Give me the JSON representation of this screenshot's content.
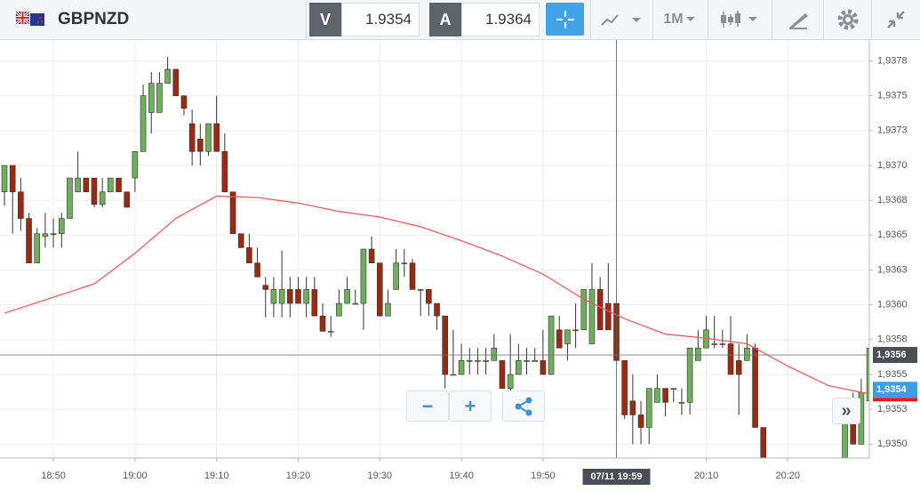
{
  "toolbar": {
    "symbol": "GBPNZD",
    "sell_label": "V",
    "sell_price": 1.9354,
    "buy_label": "A",
    "buy_price": 1.9364,
    "timeframe": "1M"
  },
  "chart_data": {
    "type": "candlestick",
    "x": [
      "18:44",
      "18:45",
      "18:46",
      "18:47",
      "18:48",
      "18:49",
      "18:50",
      "18:51",
      "18:52",
      "18:53",
      "18:54",
      "18:55",
      "18:56",
      "18:57",
      "18:58",
      "18:59",
      "19:00",
      "19:01",
      "19:02",
      "19:03",
      "19:04",
      "19:05",
      "19:06",
      "19:07",
      "19:08",
      "19:09",
      "19:10",
      "19:11",
      "19:12",
      "19:13",
      "19:14",
      "19:15",
      "19:16",
      "19:17",
      "19:18",
      "19:19",
      "19:20",
      "19:21",
      "19:22",
      "19:23",
      "19:24",
      "19:25",
      "19:26",
      "19:27",
      "19:28",
      "19:29",
      "19:30",
      "19:31",
      "19:32",
      "19:33",
      "19:34",
      "19:35",
      "19:36",
      "19:37",
      "19:38",
      "19:39",
      "19:40",
      "19:41",
      "19:42",
      "19:43",
      "19:44",
      "19:45",
      "19:46",
      "19:47",
      "19:48",
      "19:49",
      "19:50",
      "19:51",
      "19:52",
      "19:53",
      "19:54",
      "19:55",
      "19:56",
      "19:57",
      "19:58",
      "19:59",
      "20:00",
      "20:01",
      "20:02",
      "20:03",
      "20:04",
      "20:05",
      "20:06",
      "20:07",
      "20:08",
      "20:09",
      "20:10",
      "20:11",
      "20:12",
      "20:13",
      "20:14",
      "20:15",
      "20:16",
      "20:17",
      "20:27",
      "20:28",
      "20:29",
      "20:30"
    ],
    "open": [
      1.93681,
      1.937,
      1.93681,
      1.93662,
      1.9363,
      1.93649,
      1.93651,
      1.93651,
      1.93662,
      1.93681,
      1.93691,
      1.93691,
      1.93672,
      1.93681,
      1.93691,
      1.93681,
      1.93691,
      1.9371,
      1.93738,
      1.93738,
      1.93759,
      1.93769,
      1.9375,
      1.9373,
      1.93719,
      1.9371,
      1.9373,
      1.9371,
      1.93681,
      1.93651,
      1.93641,
      1.9363,
      1.93614,
      1.93601,
      1.93601,
      1.93611,
      1.93611,
      1.93601,
      1.93611,
      1.93592,
      1.93581,
      1.93592,
      1.93601,
      1.93601,
      1.93601,
      1.9364,
      1.9363,
      1.93592,
      1.93611,
      1.9363,
      1.9363,
      1.93611,
      1.93611,
      1.93601,
      1.93592,
      1.9355,
      1.9355,
      1.9356,
      1.9356,
      1.9356,
      1.9356,
      1.9356,
      1.9354,
      1.9355,
      1.9356,
      1.9356,
      1.9356,
      1.9355,
      1.93582,
      1.93572,
      1.93582,
      1.93582,
      1.93572,
      1.93611,
      1.93601,
      1.93601,
      1.9356,
      1.93531,
      1.93521,
      1.93512,
      1.9353,
      1.9354,
      1.9354,
      1.9353,
      1.9353,
      1.9356,
      1.93569,
      1.93572,
      1.93572,
      1.93572,
      1.9356,
      1.9356,
      1.93569,
      1.93512,
      1.93489,
      1.93521,
      1.935,
      1.93531
    ],
    "high": [
      1.937,
      1.937,
      1.93691,
      1.93666,
      1.93655,
      1.93666,
      1.93662,
      1.93666,
      1.93691,
      1.9371,
      1.93691,
      1.93691,
      1.93691,
      1.93691,
      1.93691,
      1.93681,
      1.9371,
      1.93758,
      1.93767,
      1.93767,
      1.93778,
      1.93769,
      1.9375,
      1.9374,
      1.9373,
      1.9373,
      1.9375,
      1.93723,
      1.93681,
      1.93651,
      1.93651,
      1.93641,
      1.9362,
      1.9362,
      1.93639,
      1.9362,
      1.9362,
      1.9362,
      1.9362,
      1.93601,
      1.93592,
      1.93611,
      1.9362,
      1.93611,
      1.9364,
      1.93649,
      1.9363,
      1.93611,
      1.9364,
      1.9364,
      1.93633,
      1.93611,
      1.93611,
      1.93601,
      1.93592,
      1.93582,
      1.93572,
      1.93569,
      1.93569,
      1.93569,
      1.93579,
      1.9356,
      1.93579,
      1.93572,
      1.93569,
      1.93569,
      1.93582,
      1.93592,
      1.93592,
      1.93582,
      1.93601,
      1.93611,
      1.9363,
      1.9362,
      1.9363,
      1.93601,
      1.9356,
      1.9355,
      1.93531,
      1.9354,
      1.9355,
      1.9354,
      1.9354,
      1.9354,
      1.93569,
      1.93582,
      1.93592,
      1.93592,
      1.93582,
      1.93592,
      1.93572,
      1.93579,
      1.93572,
      1.93512,
      1.93528,
      1.93537,
      1.93547,
      1.93581
    ],
    "low": [
      1.93671,
      1.93651,
      1.93653,
      1.9363,
      1.9363,
      1.93641,
      1.93641,
      1.93641,
      1.93662,
      1.93681,
      1.93681,
      1.9367,
      1.9367,
      1.93681,
      1.93681,
      1.9367,
      1.93681,
      1.9371,
      1.93723,
      1.93738,
      1.93759,
      1.9375,
      1.93736,
      1.937,
      1.937,
      1.93707,
      1.9371,
      1.93681,
      1.93651,
      1.93641,
      1.9363,
      1.9362,
      1.93591,
      1.93591,
      1.93591,
      1.93591,
      1.93601,
      1.93591,
      1.93592,
      1.93581,
      1.93577,
      1.93592,
      1.93601,
      1.93601,
      1.93582,
      1.9363,
      1.93592,
      1.93592,
      1.93611,
      1.9362,
      1.93611,
      1.93592,
      1.93592,
      1.93582,
      1.9354,
      1.9355,
      1.9355,
      1.9355,
      1.9355,
      1.9355,
      1.9356,
      1.9354,
      1.93537,
      1.9355,
      1.9355,
      1.9356,
      1.9355,
      1.9355,
      1.93569,
      1.9356,
      1.93569,
      1.93582,
      1.93572,
      1.93582,
      1.93582,
      1.9356,
      1.93518,
      1.935,
      1.935,
      1.935,
      1.9353,
      1.9352,
      1.9353,
      1.93521,
      1.93521,
      1.9356,
      1.93569,
      1.93569,
      1.93569,
      1.9355,
      1.93521,
      1.9356,
      1.93512,
      1.93489,
      1.93489,
      1.935,
      1.935,
      1.93531
    ],
    "close": [
      1.937,
      1.93681,
      1.93662,
      1.9363,
      1.93651,
      1.93651,
      1.93651,
      1.93662,
      1.93691,
      1.93691,
      1.93681,
      1.93672,
      1.93681,
      1.93691,
      1.93681,
      1.9367,
      1.9371,
      1.9375,
      1.93759,
      1.93759,
      1.93769,
      1.9375,
      1.93741,
      1.9371,
      1.9371,
      1.9373,
      1.9371,
      1.93681,
      1.93651,
      1.93641,
      1.9363,
      1.9362,
      1.93611,
      1.93611,
      1.93611,
      1.93601,
      1.93601,
      1.93611,
      1.93592,
      1.93581,
      1.93581,
      1.93601,
      1.93611,
      1.93601,
      1.9364,
      1.9363,
      1.93592,
      1.93601,
      1.9363,
      1.9363,
      1.93611,
      1.93611,
      1.93601,
      1.93592,
      1.9355,
      1.9355,
      1.9356,
      1.9356,
      1.9356,
      1.9356,
      1.93569,
      1.9354,
      1.9355,
      1.9356,
      1.9356,
      1.9356,
      1.9355,
      1.93592,
      1.93569,
      1.93582,
      1.93582,
      1.93611,
      1.93611,
      1.93582,
      1.93582,
      1.9356,
      1.93521,
      1.93521,
      1.93512,
      1.9354,
      1.9354,
      1.9353,
      1.9354,
      1.9353,
      1.93569,
      1.93569,
      1.93582,
      1.93572,
      1.93572,
      1.9355,
      1.9355,
      1.93569,
      1.93512,
      1.93489,
      1.93528,
      1.935,
      1.93537,
      1.93569
    ],
    "up_color": "#6fae5c",
    "down_color": "#9a2b12",
    "moving_average": {
      "color": "#e8605c",
      "x": [
        "18:44",
        "18:55",
        "19:00",
        "19:05",
        "19:10",
        "19:15",
        "19:20",
        "19:25",
        "19:30",
        "19:35",
        "19:40",
        "19:45",
        "19:50",
        "19:55",
        "20:00",
        "20:05",
        "20:10",
        "20:15",
        "20:20",
        "20:25",
        "20:30"
      ],
      "values": [
        1.93594,
        1.93615,
        1.93637,
        1.93662,
        1.93678,
        1.93677,
        1.93673,
        1.93667,
        1.93663,
        1.93656,
        1.93646,
        1.93635,
        1.93622,
        1.93604,
        1.9359,
        1.93579,
        1.93576,
        1.93572,
        1.93556,
        1.93542,
        1.93536
      ]
    },
    "ylim": [
      1.9349,
      1.9379
    ],
    "yticks": [
      {
        "value": 1.935,
        "label": "1,9350"
      },
      {
        "value": 1.93525,
        "label": "1,9353"
      },
      {
        "value": 1.9355,
        "label": "1,9355"
      },
      {
        "value": 1.93575,
        "label": "1,9358"
      },
      {
        "value": 1.936,
        "label": "1,9360"
      },
      {
        "value": 1.93625,
        "label": "1,9363"
      },
      {
        "value": 1.9365,
        "label": "1,9365"
      },
      {
        "value": 1.93675,
        "label": "1,9368"
      },
      {
        "value": 1.937,
        "label": "1,9370"
      },
      {
        "value": 1.93725,
        "label": "1,9373"
      },
      {
        "value": 1.9375,
        "label": "1,9375"
      },
      {
        "value": 1.93775,
        "label": "1,9378"
      }
    ],
    "xticks": [
      "18:50",
      "19:00",
      "19:10",
      "19:20",
      "19:30",
      "19:40",
      "19:50",
      "20:10",
      "20:20"
    ],
    "grid": true,
    "crosshair": {
      "x": "19:59",
      "x_label": "07/11 19:59",
      "y": 1.93564,
      "y_label": "1,9356"
    },
    "last_price": {
      "value": 1.93539,
      "label": "1,9354"
    }
  }
}
